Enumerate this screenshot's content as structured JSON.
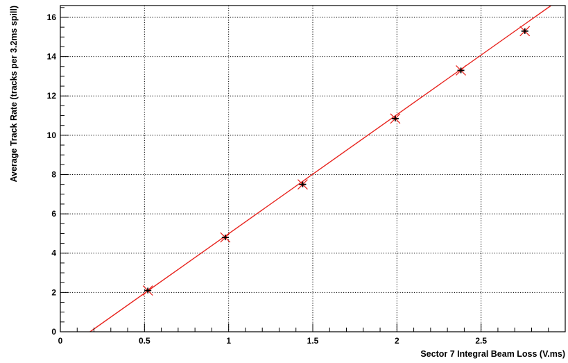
{
  "chart_data": {
    "type": "scatter",
    "title": "",
    "xlabel": "Sector 7 Integral Beam Loss (V.ms)",
    "ylabel": "Average Track Rate (tracks per 3.2ms spill)",
    "xlim": [
      0,
      3.0
    ],
    "ylim": [
      0,
      16.6
    ],
    "grid": true,
    "x_ticks": [
      {
        "value": 0,
        "label": "0"
      },
      {
        "value": 0.5,
        "label": "0.5"
      },
      {
        "value": 1,
        "label": "1"
      },
      {
        "value": 1.5,
        "label": "1.5"
      },
      {
        "value": 2,
        "label": "2"
      },
      {
        "value": 2.5,
        "label": "2.5"
      }
    ],
    "y_ticks": [
      {
        "value": 0,
        "label": "0"
      },
      {
        "value": 2,
        "label": "2"
      },
      {
        "value": 4,
        "label": "4"
      },
      {
        "value": 6,
        "label": "6"
      },
      {
        "value": 8,
        "label": "8"
      },
      {
        "value": 10,
        "label": "10"
      },
      {
        "value": 12,
        "label": "12"
      },
      {
        "value": 14,
        "label": "14"
      },
      {
        "value": 16,
        "label": "16"
      }
    ],
    "series": [
      {
        "points": [
          {
            "x": 0.52,
            "y": 2.1
          },
          {
            "x": 0.98,
            "y": 4.8
          },
          {
            "x": 1.44,
            "y": 7.5
          },
          {
            "x": 1.99,
            "y": 10.85
          },
          {
            "x": 2.38,
            "y": 13.3
          },
          {
            "x": 2.76,
            "y": 15.3
          }
        ],
        "color": "#000000"
      }
    ],
    "fit_line": {
      "slope": 6.06,
      "intercept": -1.07,
      "color": "#e8251f"
    }
  }
}
